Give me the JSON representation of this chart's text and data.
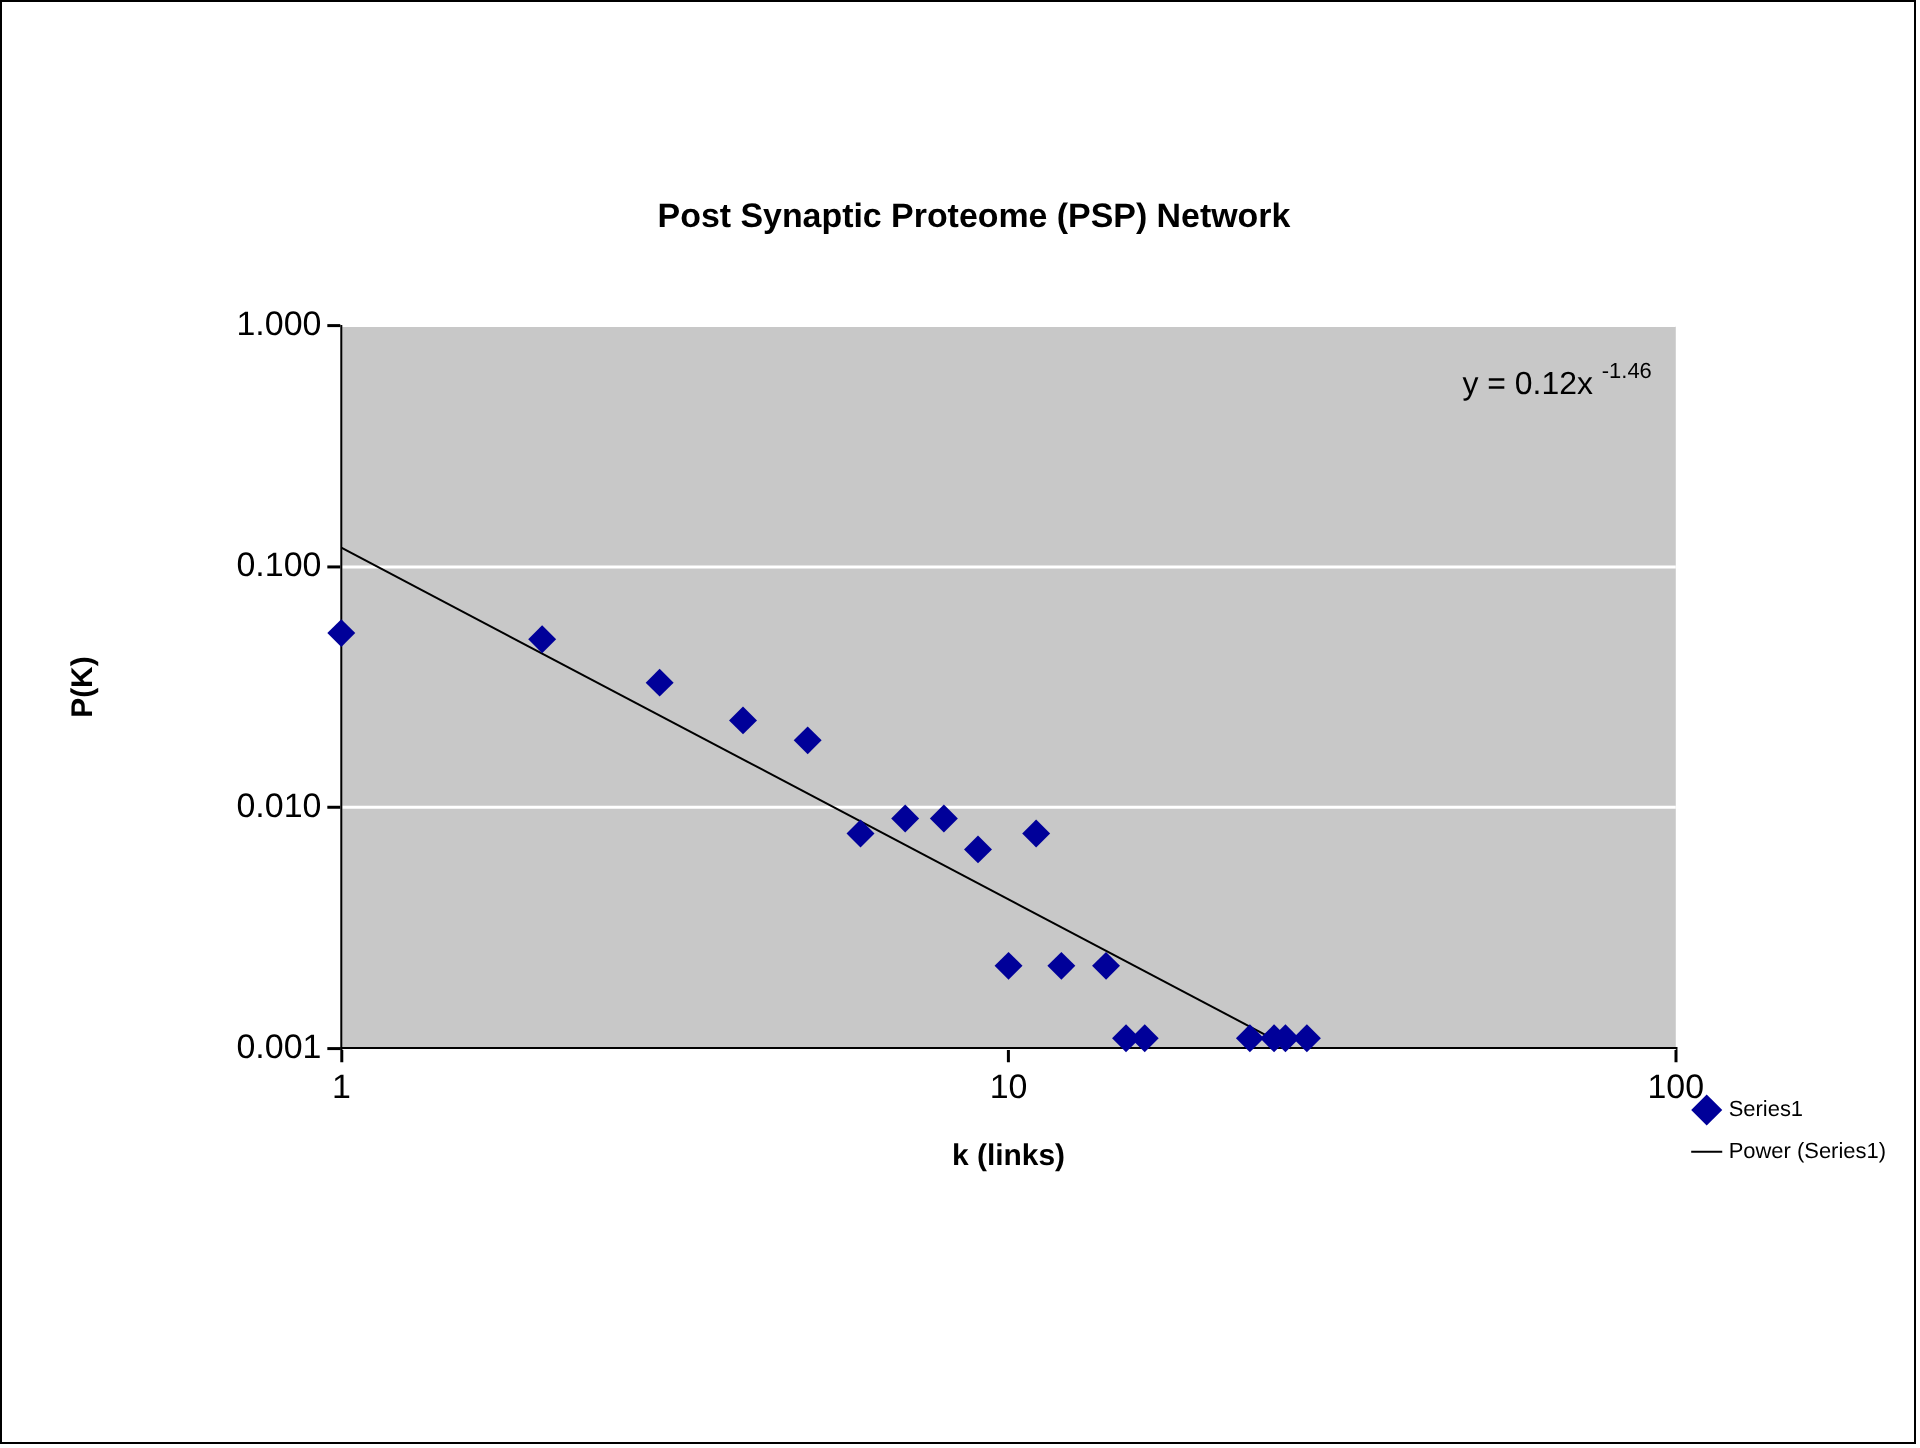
{
  "chart_data": {
    "type": "scatter",
    "title": "Post Synaptic Proteome (PSP) Network",
    "xlabel": "k (links)",
    "ylabel": "P(K)",
    "series": [
      {
        "name": "Series1",
        "marker": "diamond",
        "color": "#000099",
        "x": [
          1,
          2,
          3,
          4,
          5,
          6,
          7,
          8,
          9,
          10,
          11,
          12,
          14,
          15,
          16,
          23,
          25,
          26,
          28
        ],
        "values": [
          0.053,
          0.05,
          0.033,
          0.023,
          0.019,
          0.0078,
          0.009,
          0.009,
          0.0067,
          0.0022,
          0.0078,
          0.0022,
          0.0022,
          0.0011,
          0.0011,
          0.0011,
          0.0011,
          0.0011,
          0.0011
        ]
      },
      {
        "name": "Power (Series1)",
        "type": "line",
        "marker": "none",
        "color": "#000000",
        "x": [
          1,
          26.5
        ],
        "values": [
          0.12,
          0.001
        ]
      }
    ],
    "xlim": [
      1,
      100
    ],
    "xticks": [
      1,
      10,
      100
    ],
    "ylim": [
      0.001,
      1
    ],
    "yticks": [
      {
        "value": 0.001,
        "label": "0.001"
      },
      {
        "value": 0.01,
        "label": "0.010"
      },
      {
        "value": 0.1,
        "label": "0.100"
      },
      {
        "value": 1,
        "label": "1.000"
      }
    ],
    "log": "xy",
    "grid": "y",
    "legend": "bottom right",
    "annotations": [
      "y = 0.12x $^{-1.46}$"
    ]
  }
}
